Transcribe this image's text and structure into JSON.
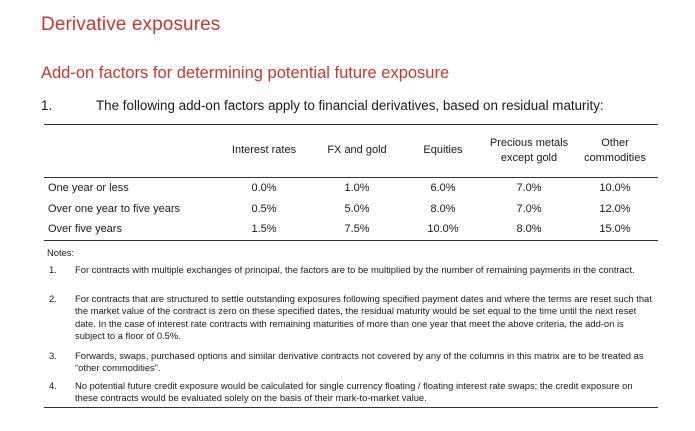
{
  "title": "Derivative exposures",
  "subtitle": "Add-on factors for determining potential future exposure",
  "paragraph": {
    "number": "1.",
    "text": "The following add-on factors apply to financial derivatives, based on residual maturity:"
  },
  "table": {
    "headers": [
      "",
      "Interest rates",
      "FX and gold",
      "Equities",
      "Precious metals except gold",
      "Other commodities"
    ],
    "rows": [
      {
        "label": "One year or less",
        "values": [
          "0.0%",
          "1.0%",
          "6.0%",
          "7.0%",
          "10.0%"
        ]
      },
      {
        "label": "Over one year to five years",
        "values": [
          "0.5%",
          "5.0%",
          "8.0%",
          "7.0%",
          "12.0%"
        ]
      },
      {
        "label": "Over five years",
        "values": [
          "1.5%",
          "7.5%",
          "10.0%",
          "8.0%",
          "15.0%"
        ]
      }
    ]
  },
  "notes": {
    "title": "Notes:",
    "items": [
      {
        "number": "1.",
        "text": "For contracts with multiple exchanges of principal, the factors are to be multiplied by the number of remaining payments in the contract."
      },
      {
        "number": "2.",
        "text": "For contracts that are structured to settle outstanding exposures following specified payment dates and where the terms are reset such that the market value of the contract is zero on these specified dates, the residual maturity would be set equal to the time until the next reset date. In the case of interest rate contracts with remaining maturities of more than one year that meet the above criteria, the add-on is subject to a floor of 0.5%."
      },
      {
        "number": "3.",
        "text": "Forwards, swaps, purchased options and similar derivative contracts not covered by any of the columns in this matrix are to be treated as “other commodities”."
      },
      {
        "number": "4.",
        "text": "No potential future credit exposure would be calculated for single currency floating / floating interest rate swaps; the credit exposure on these contracts would be evaluated solely on the basis of their mark-to-market value."
      }
    ]
  }
}
